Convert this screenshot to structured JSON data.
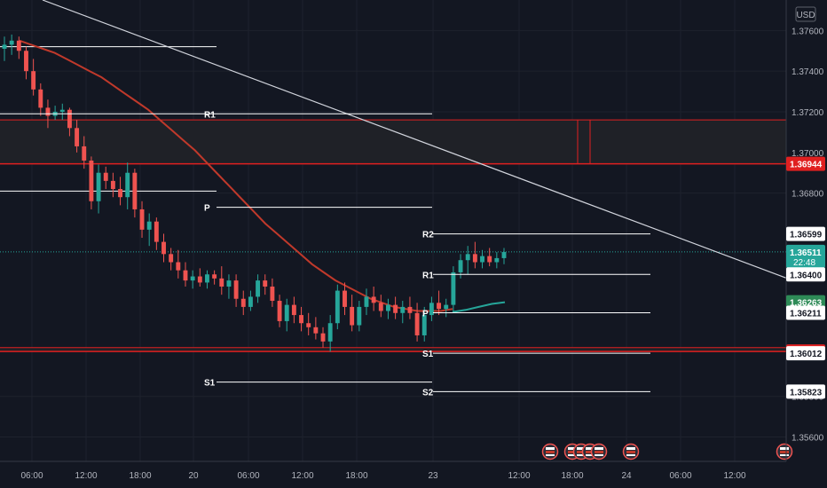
{
  "chart_data": {
    "type": "candlestick",
    "currency": "USD",
    "y_ticks": [
      1.376,
      1.374,
      1.372,
      1.37,
      1.368,
      1.358,
      1.356
    ],
    "ylim": [
      1.3548,
      1.3775
    ],
    "x_ticks": [
      "06:00",
      "12:00",
      "18:00",
      "20",
      "06:00",
      "12:00",
      "18:00",
      "23",
      "12:00",
      "18:00",
      "24",
      "06:00",
      "12:00"
    ],
    "price_badges": [
      {
        "value": "1.36944",
        "color": "#e02020",
        "text_color": "#ffffff"
      },
      {
        "value": "1.36599",
        "color": "#ffffff",
        "text_color": "#131722"
      },
      {
        "value": "1.36511",
        "sub": "22:48",
        "color": "#26a69a",
        "text_color": "#ffffff"
      },
      {
        "value": "1.36400",
        "color": "#ffffff",
        "text_color": "#131722"
      },
      {
        "value": "1.36263",
        "color": "#2e8b57",
        "text_color": "#ffffff"
      },
      {
        "value": "1.36211",
        "color": "#ffffff",
        "text_color": "#131722"
      },
      {
        "value": "1.36021",
        "color": "#e02020",
        "text_color": "#ffffff"
      },
      {
        "value": "1.36012",
        "color": "#ffffff",
        "text_color": "#131722"
      },
      {
        "value": "1.35823",
        "color": "#ffffff",
        "text_color": "#131722"
      }
    ],
    "pivot_sets": [
      {
        "levels": [
          {
            "label": "R1",
            "value": 1.3719
          },
          {
            "label": "P",
            "value": 1.3673
          },
          {
            "label": "S1",
            "value": 1.3587
          }
        ]
      },
      {
        "levels": [
          {
            "label": "R2",
            "value": 1.36599
          },
          {
            "label": "R1",
            "value": 1.364
          },
          {
            "label": "P",
            "value": 1.36211
          },
          {
            "label": "S1",
            "value": 1.36012
          },
          {
            "label": "S2",
            "value": 1.35823
          }
        ]
      }
    ],
    "upper_lines": [
      1.3752,
      1.3681
    ],
    "resistance_zone": [
      1.36944,
      1.3716
    ],
    "support_zone": [
      1.36021,
      1.3604
    ],
    "candles": [
      [
        1.3751,
        1.3757,
        1.3745,
        1.3753
      ],
      [
        1.3753,
        1.3758,
        1.3748,
        1.3755
      ],
      [
        1.3755,
        1.3757,
        1.3746,
        1.375
      ],
      [
        1.375,
        1.3752,
        1.3736,
        1.374
      ],
      [
        1.374,
        1.3746,
        1.3728,
        1.3731
      ],
      [
        1.3731,
        1.3734,
        1.3718,
        1.3722
      ],
      [
        1.3722,
        1.3726,
        1.3712,
        1.3718
      ],
      [
        1.3718,
        1.3723,
        1.3716,
        1.372
      ],
      [
        1.372,
        1.3724,
        1.3716,
        1.3721
      ],
      [
        1.3721,
        1.3722,
        1.3708,
        1.3712
      ],
      [
        1.3712,
        1.3716,
        1.37,
        1.3703
      ],
      [
        1.3703,
        1.3708,
        1.3692,
        1.3696
      ],
      [
        1.3696,
        1.3698,
        1.3672,
        1.3676
      ],
      [
        1.3676,
        1.3694,
        1.367,
        1.369
      ],
      [
        1.369,
        1.3693,
        1.3682,
        1.3686
      ],
      [
        1.3686,
        1.369,
        1.3678,
        1.3682
      ],
      [
        1.3682,
        1.3688,
        1.3674,
        1.3678
      ],
      [
        1.3678,
        1.3695,
        1.3672,
        1.369
      ],
      [
        1.369,
        1.3692,
        1.3668,
        1.3672
      ],
      [
        1.3672,
        1.3676,
        1.3658,
        1.3662
      ],
      [
        1.3662,
        1.367,
        1.3654,
        1.3666
      ],
      [
        1.3666,
        1.3668,
        1.3652,
        1.3656
      ],
      [
        1.3656,
        1.366,
        1.3646,
        1.365
      ],
      [
        1.365,
        1.3653,
        1.3642,
        1.3646
      ],
      [
        1.3646,
        1.3652,
        1.3638,
        1.3642
      ],
      [
        1.3642,
        1.3646,
        1.3634,
        1.3637
      ],
      [
        1.3637,
        1.3642,
        1.3633,
        1.3639
      ],
      [
        1.3639,
        1.3643,
        1.3634,
        1.3636
      ],
      [
        1.3636,
        1.3642,
        1.3633,
        1.364
      ],
      [
        1.364,
        1.3642,
        1.3635,
        1.3638
      ],
      [
        1.3638,
        1.3644,
        1.363,
        1.3634
      ],
      [
        1.3634,
        1.364,
        1.3628,
        1.3637
      ],
      [
        1.3637,
        1.364,
        1.3624,
        1.3628
      ],
      [
        1.3628,
        1.3632,
        1.362,
        1.3624
      ],
      [
        1.3624,
        1.3632,
        1.3622,
        1.3629
      ],
      [
        1.3629,
        1.364,
        1.3626,
        1.3637
      ],
      [
        1.3637,
        1.364,
        1.363,
        1.3634
      ],
      [
        1.3634,
        1.3638,
        1.3624,
        1.3627
      ],
      [
        1.3627,
        1.363,
        1.3614,
        1.3617
      ],
      [
        1.3617,
        1.3628,
        1.3612,
        1.3625
      ],
      [
        1.3625,
        1.3629,
        1.3616,
        1.362
      ],
      [
        1.362,
        1.3624,
        1.3612,
        1.3616
      ],
      [
        1.3616,
        1.3621,
        1.361,
        1.3614
      ],
      [
        1.3614,
        1.3619,
        1.3608,
        1.3611
      ],
      [
        1.3611,
        1.3614,
        1.3604,
        1.3607
      ],
      [
        1.3607,
        1.362,
        1.3602,
        1.3616
      ],
      [
        1.3616,
        1.3635,
        1.3613,
        1.3632
      ],
      [
        1.3632,
        1.3636,
        1.362,
        1.3624
      ],
      [
        1.3624,
        1.363,
        1.3612,
        1.3615
      ],
      [
        1.3615,
        1.3627,
        1.3612,
        1.3624
      ],
      [
        1.3624,
        1.3633,
        1.362,
        1.3629
      ],
      [
        1.3629,
        1.3634,
        1.3622,
        1.3626
      ],
      [
        1.3626,
        1.363,
        1.3619,
        1.3622
      ],
      [
        1.3622,
        1.3628,
        1.3618,
        1.3625
      ],
      [
        1.3625,
        1.3629,
        1.3618,
        1.3621
      ],
      [
        1.3621,
        1.3627,
        1.3616,
        1.3624
      ],
      [
        1.3624,
        1.3629,
        1.3618,
        1.3621
      ],
      [
        1.3621,
        1.3626,
        1.3607,
        1.361
      ],
      [
        1.361,
        1.3624,
        1.3607,
        1.362
      ],
      [
        1.362,
        1.3629,
        1.3617,
        1.3626
      ],
      [
        1.3626,
        1.3632,
        1.362,
        1.3623
      ],
      [
        1.3623,
        1.3628,
        1.3619,
        1.3625
      ],
      [
        1.3625,
        1.3644,
        1.3622,
        1.3641
      ],
      [
        1.3641,
        1.365,
        1.3638,
        1.3647
      ],
      [
        1.3647,
        1.3654,
        1.364,
        1.365
      ],
      [
        1.365,
        1.3656,
        1.3643,
        1.3646
      ],
      [
        1.3646,
        1.3652,
        1.3643,
        1.3649
      ],
      [
        1.3649,
        1.3653,
        1.3644,
        1.3646
      ],
      [
        1.3646,
        1.3651,
        1.3643,
        1.3648
      ],
      [
        1.3648,
        1.3653,
        1.3645,
        1.3651
      ]
    ],
    "sma_values": [
      1.3755,
      1.3753,
      1.3751,
      1.3749,
      1.3746,
      1.3743,
      1.374,
      1.3737,
      1.3733,
      1.3729,
      1.3725,
      1.3721,
      1.3716,
      1.3711,
      1.3706,
      1.3701,
      1.3695,
      1.3689,
      1.3683,
      1.3677,
      1.3671,
      1.3665,
      1.366,
      1.3655,
      1.365,
      1.3645,
      1.3641,
      1.3637,
      1.3634,
      1.3631,
      1.3628,
      1.3626,
      1.3624,
      1.3623,
      1.3622,
      1.3622,
      1.3622,
      1.3623
    ],
    "ma_green": [
      1.36215,
      1.36225,
      1.3624,
      1.36255,
      1.36263
    ],
    "trendline": [
      [
        1.3775,
        1.364
      ]
    ]
  }
}
